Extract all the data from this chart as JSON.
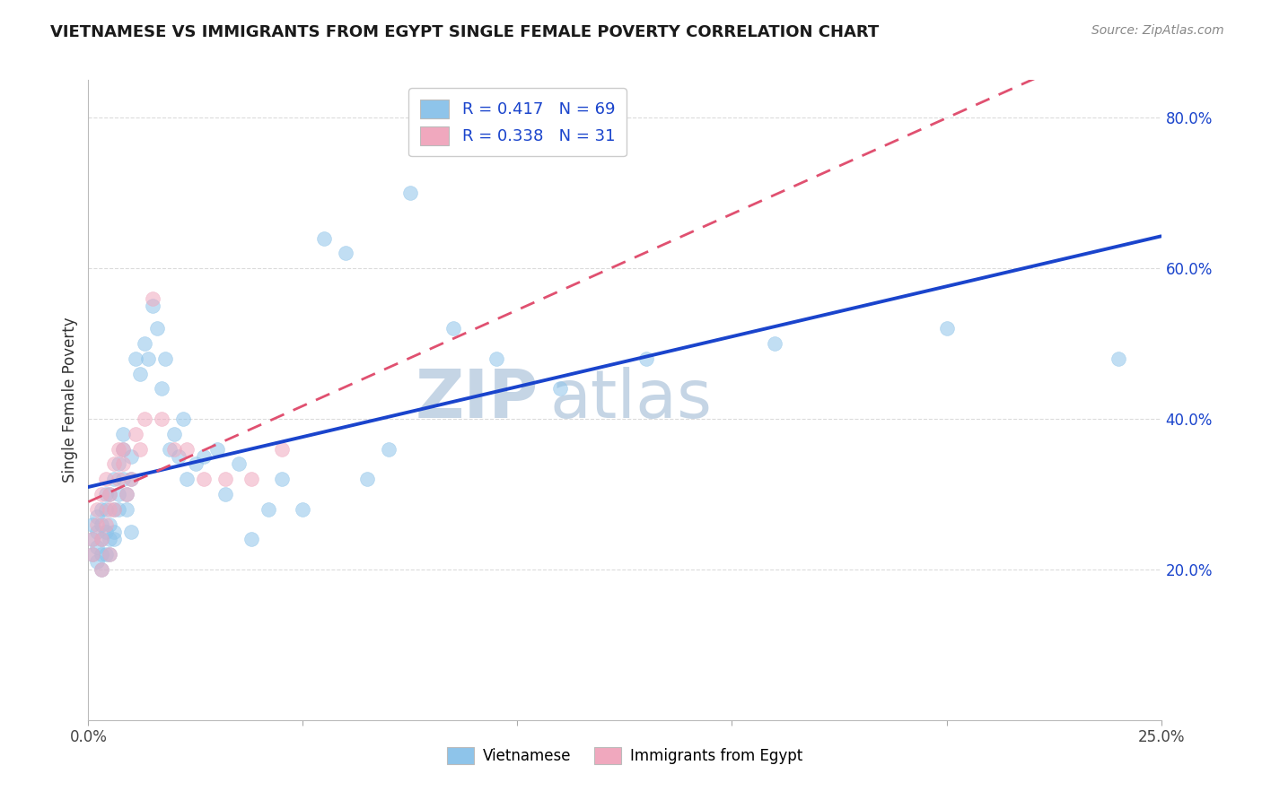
{
  "title": "VIETNAMESE VS IMMIGRANTS FROM EGYPT SINGLE FEMALE POVERTY CORRELATION CHART",
  "source_text": "Source: ZipAtlas.com",
  "ylabel": "Single Female Poverty",
  "xlim": [
    0.0,
    0.25
  ],
  "ylim": [
    0.0,
    0.85
  ],
  "xtick_positions": [
    0.0,
    0.05,
    0.1,
    0.15,
    0.2,
    0.25
  ],
  "xtick_labels": [
    "0.0%",
    "",
    "",
    "",
    "",
    "25.0%"
  ],
  "ytick_positions": [
    0.2,
    0.4,
    0.6,
    0.8
  ],
  "ytick_labels": [
    "20.0%",
    "40.0%",
    "60.0%",
    "80.0%"
  ],
  "r_vietnamese": 0.417,
  "n_vietnamese": 69,
  "r_egypt": 0.338,
  "n_egypt": 31,
  "color_vietnamese": "#8ec4ea",
  "color_egypt": "#f0a8be",
  "line_color_vietnamese": "#1a44cc",
  "line_color_egypt": "#e05070",
  "legend_r_color": "#1a44cc",
  "watermark_zip": "ZIP",
  "watermark_atlas": "atlas",
  "watermark_color": "#c5d5e5",
  "background_color": "#ffffff",
  "grid_color": "#cccccc",
  "label_font_size": 12,
  "title_font_size": 13,
  "scatter_size": 130,
  "scatter_alpha": 0.55,
  "legend_label_1": "Vietnamese",
  "legend_label_2": "Immigrants from Egypt",
  "viet_x": [
    0.001,
    0.001,
    0.001,
    0.002,
    0.002,
    0.002,
    0.002,
    0.003,
    0.003,
    0.003,
    0.003,
    0.003,
    0.004,
    0.004,
    0.004,
    0.004,
    0.005,
    0.005,
    0.005,
    0.005,
    0.006,
    0.006,
    0.006,
    0.006,
    0.007,
    0.007,
    0.007,
    0.008,
    0.008,
    0.008,
    0.009,
    0.009,
    0.01,
    0.01,
    0.01,
    0.011,
    0.012,
    0.013,
    0.014,
    0.015,
    0.016,
    0.017,
    0.018,
    0.019,
    0.02,
    0.021,
    0.022,
    0.023,
    0.025,
    0.027,
    0.03,
    0.032,
    0.035,
    0.038,
    0.042,
    0.045,
    0.05,
    0.055,
    0.06,
    0.065,
    0.07,
    0.075,
    0.085,
    0.095,
    0.11,
    0.13,
    0.16,
    0.2,
    0.24
  ],
  "viet_y": [
    0.24,
    0.22,
    0.26,
    0.23,
    0.21,
    0.25,
    0.27,
    0.28,
    0.24,
    0.26,
    0.22,
    0.2,
    0.3,
    0.25,
    0.22,
    0.28,
    0.26,
    0.24,
    0.3,
    0.22,
    0.32,
    0.28,
    0.25,
    0.24,
    0.34,
    0.3,
    0.28,
    0.36,
    0.32,
    0.38,
    0.3,
    0.28,
    0.35,
    0.32,
    0.25,
    0.48,
    0.46,
    0.5,
    0.48,
    0.55,
    0.52,
    0.44,
    0.48,
    0.36,
    0.38,
    0.35,
    0.4,
    0.32,
    0.34,
    0.35,
    0.36,
    0.3,
    0.34,
    0.24,
    0.28,
    0.32,
    0.28,
    0.64,
    0.62,
    0.32,
    0.36,
    0.7,
    0.52,
    0.48,
    0.44,
    0.48,
    0.5,
    0.52,
    0.48
  ],
  "egypt_x": [
    0.001,
    0.001,
    0.002,
    0.002,
    0.003,
    0.003,
    0.003,
    0.004,
    0.004,
    0.005,
    0.005,
    0.005,
    0.006,
    0.006,
    0.007,
    0.007,
    0.008,
    0.008,
    0.009,
    0.01,
    0.011,
    0.012,
    0.013,
    0.015,
    0.017,
    0.02,
    0.023,
    0.027,
    0.032,
    0.038,
    0.045
  ],
  "egypt_y": [
    0.22,
    0.24,
    0.26,
    0.28,
    0.24,
    0.3,
    0.2,
    0.32,
    0.26,
    0.28,
    0.3,
    0.22,
    0.34,
    0.28,
    0.36,
    0.32,
    0.36,
    0.34,
    0.3,
    0.32,
    0.38,
    0.36,
    0.4,
    0.56,
    0.4,
    0.36,
    0.36,
    0.32,
    0.32,
    0.32,
    0.36
  ]
}
